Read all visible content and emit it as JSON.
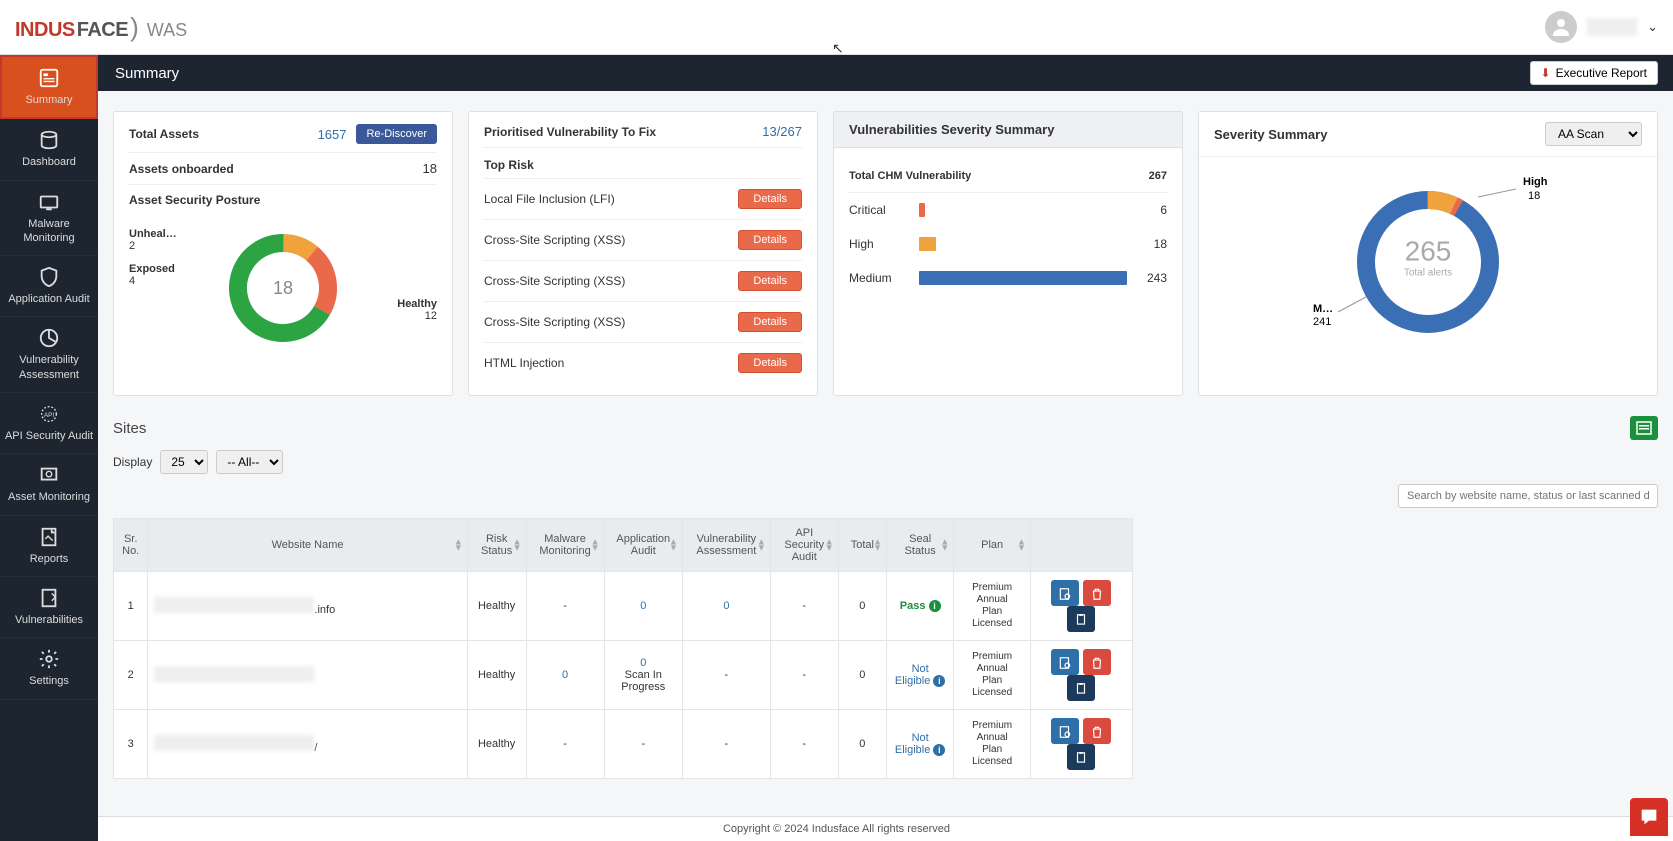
{
  "header": {
    "logo_indus": "INDUS",
    "logo_face": "FACE",
    "logo_was": "WAS",
    "page_title": "Summary",
    "exec_report_label": "Executive Report"
  },
  "sidebar": {
    "items": [
      {
        "label": "Summary",
        "icon": "summary"
      },
      {
        "label": "Dashboard",
        "icon": "dashboard"
      },
      {
        "label": "Malware Monitoring",
        "icon": "malware"
      },
      {
        "label": "Application Audit",
        "icon": "audit"
      },
      {
        "label": "Vulnerability Assessment",
        "icon": "vuln"
      },
      {
        "label": "API Security Audit",
        "icon": "api"
      },
      {
        "label": "Asset Monitoring",
        "icon": "asset"
      },
      {
        "label": "Reports",
        "icon": "reports"
      },
      {
        "label": "Vulnerabilities",
        "icon": "vulns"
      },
      {
        "label": "Settings",
        "icon": "settings"
      }
    ]
  },
  "assets": {
    "total_label": "Total Assets",
    "total_value": "1657",
    "rediscover_label": "Re-Discover",
    "onboarded_label": "Assets onboarded",
    "onboarded_value": "18",
    "posture_label": "Asset Security Posture",
    "donut": {
      "total": "18",
      "segments": [
        {
          "label": "Unheal…",
          "value": "2",
          "color": "#e96a4a"
        },
        {
          "label": "Exposed",
          "value": "4",
          "color": "#e96a4a"
        },
        {
          "label": "Healthy",
          "value": "12",
          "color": "#2ca444"
        }
      ]
    }
  },
  "prioritised": {
    "title": "Prioritised Vulnerability To Fix",
    "count": "13/267",
    "top_risk_label": "Top Risk",
    "details_label": "Details",
    "risks": [
      "Local File Inclusion (LFI)",
      "Cross-Site Scripting (XSS)",
      "Cross-Site Scripting (XSS)",
      "Cross-Site Scripting (XSS)",
      "HTML Injection"
    ]
  },
  "severity": {
    "title": "Vulnerabilities Severity Summary",
    "total_label": "Total CHM Vulnerability",
    "total_value": "267",
    "rows": [
      {
        "label": "Critical",
        "value": "6",
        "color": "#e96a4a",
        "pct": 3
      },
      {
        "label": "High",
        "value": "18",
        "color": "#f0a23c",
        "pct": 8
      },
      {
        "label": "Medium",
        "value": "243",
        "color": "#3b6fb5",
        "pct": 100
      }
    ]
  },
  "severity_summary": {
    "title": "Severity Summary",
    "select_value": "AA Scan",
    "center_num": "265",
    "center_txt": "Total alerts",
    "segments": [
      {
        "label": "High",
        "value": "18",
        "color": "#f0a23c"
      },
      {
        "label": "M…",
        "value": "241",
        "color": "#3b6fb5"
      }
    ]
  },
  "sites": {
    "title": "Sites",
    "display_label": "Display",
    "display_value": "25",
    "filter_value": "-- All--",
    "search_placeholder": "Search by website name, status or last scanned da",
    "columns": [
      "Sr. No.",
      "Website Name",
      "Risk Status",
      "Malware Monitoring",
      "Application Audit",
      "Vulnerability Assessment",
      "API Security Audit",
      "Total",
      "Seal Status",
      "Plan",
      ""
    ],
    "rows": [
      {
        "sr": "1",
        "site_suffix": ".info",
        "risk": "Healthy",
        "malware": "-",
        "app_audit": "0",
        "app_audit_link": true,
        "vuln": "0",
        "vuln_link": true,
        "api": "-",
        "total": "0",
        "seal": "Pass",
        "seal_type": "pass",
        "plan": "Premium Annual Plan Licensed"
      },
      {
        "sr": "2",
        "site_suffix": "",
        "risk": "Healthy",
        "malware": "0",
        "malware_link": true,
        "app_audit": "0 Scan In Progress",
        "app_audit_multi": true,
        "vuln": "-",
        "api": "-",
        "total": "0",
        "seal": "Not Eligible",
        "seal_type": "notelig",
        "plan": "Premium Annual Plan Licensed"
      },
      {
        "sr": "3",
        "site_suffix": "/",
        "risk": "Healthy",
        "malware": "-",
        "app_audit": "-",
        "vuln": "-",
        "api": "-",
        "total": "0",
        "seal": "Not Eligible",
        "seal_type": "notelig",
        "plan": "Premium Annual Plan Licensed"
      }
    ]
  },
  "footer": {
    "text": "Copyright © 2024 Indusface All rights reserved"
  }
}
